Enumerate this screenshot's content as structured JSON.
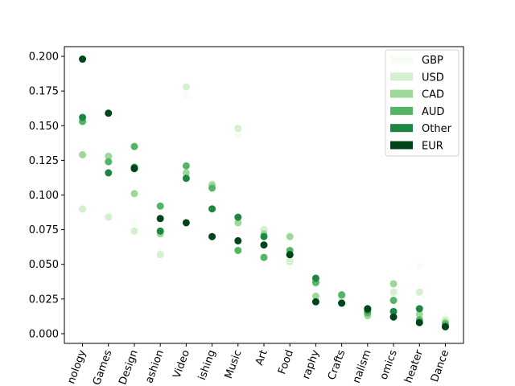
{
  "chart_data": {
    "type": "scatter",
    "title": "",
    "xlabel": "",
    "ylabel": "",
    "ylim": [
      -0.007,
      0.207
    ],
    "yticks": [
      0.0,
      0.025,
      0.05,
      0.075,
      0.1,
      0.125,
      0.15,
      0.175,
      0.2
    ],
    "ytick_labels": [
      "0.000",
      "0.025",
      "0.050",
      "0.075",
      "0.100",
      "0.125",
      "0.150",
      "0.175",
      "0.200"
    ],
    "categories": [
      "Technology",
      "Games",
      "Design",
      "Fashion",
      "Video",
      "Publishing",
      "Music",
      "Art",
      "Food",
      "Photography",
      "Crafts",
      "Journalism",
      "Comics",
      "Theater",
      "Dance"
    ],
    "xtick_labels": [
      "nology",
      "Games",
      "Design",
      "ashion",
      "Video",
      "ishing",
      "Music",
      "Art",
      "Food",
      "raphy",
      "Crafts",
      "nalism",
      "omics",
      "heater",
      "Dance"
    ],
    "legend_position": "top-right",
    "series": [
      {
        "name": "GBP",
        "color": "#f7fcf5",
        "values": [
          0.089,
          0.086,
          0.081,
          0.059,
          0.172,
          0.107,
          0.143,
          0.077,
          0.049,
          0.038,
          0.027,
          0.017,
          0.035,
          0.049,
          0.012
        ]
      },
      {
        "name": "USD",
        "color": "#d5efcf",
        "values": [
          0.09,
          0.084,
          0.074,
          0.057,
          0.178,
          0.108,
          0.148,
          0.075,
          0.052,
          0.036,
          0.026,
          0.014,
          0.03,
          0.03,
          0.01
        ]
      },
      {
        "name": "CAD",
        "color": "#9ed798",
        "values": [
          0.129,
          0.128,
          0.101,
          0.072,
          0.116,
          0.107,
          0.08,
          0.072,
          0.07,
          0.027,
          0.028,
          0.013,
          0.036,
          0.014,
          0.008
        ]
      },
      {
        "name": "AUD",
        "color": "#54b567",
        "values": [
          0.153,
          0.124,
          0.135,
          0.092,
          0.121,
          0.105,
          0.06,
          0.055,
          0.06,
          0.037,
          0.028,
          0.015,
          0.024,
          0.01,
          0.007
        ]
      },
      {
        "name": "Other",
        "color": "#1d8641",
        "values": [
          0.156,
          0.116,
          0.12,
          0.074,
          0.112,
          0.09,
          0.084,
          0.07,
          0.057,
          0.04,
          0.022,
          0.017,
          0.016,
          0.018,
          0.005
        ]
      },
      {
        "name": "EUR",
        "color": "#00441b",
        "values": [
          0.198,
          0.159,
          0.119,
          0.083,
          0.08,
          0.07,
          0.067,
          0.064,
          0.057,
          0.023,
          0.022,
          0.018,
          0.012,
          0.008,
          0.005
        ]
      }
    ]
  }
}
